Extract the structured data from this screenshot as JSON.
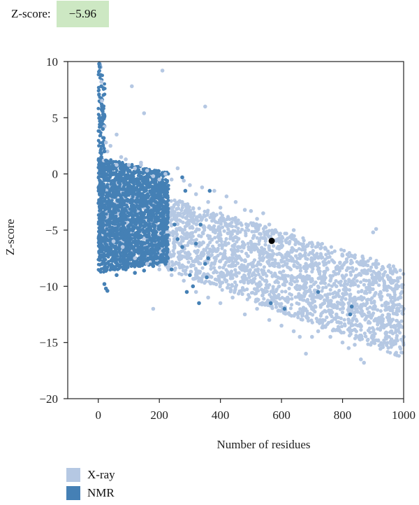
{
  "header": {
    "label": "Z-score:",
    "value": "−5.96"
  },
  "colors": {
    "xray": "#b5c8e3",
    "nmr": "#4580b5",
    "highlight": "#000000",
    "badge": "#cde8c3"
  },
  "chart_data": {
    "type": "scatter",
    "xlabel": "Number of residues",
    "ylabel": "Z-score",
    "xlim": [
      -100,
      1000
    ],
    "ylim": [
      -20,
      10
    ],
    "xticks": [
      0,
      200,
      400,
      600,
      800,
      1000
    ],
    "yticks": [
      10,
      5,
      0,
      -5,
      -10,
      -15,
      -20
    ],
    "ytick_labels": [
      "10",
      "5",
      "0",
      "−5",
      "−10",
      "−15",
      "−20"
    ],
    "grid": false,
    "legend_position": "bottom-left",
    "series": [
      {
        "name": "X-ray",
        "color": "#b5c8e3",
        "points": [
          [
            5,
            9.8
          ],
          [
            8,
            9.5
          ],
          [
            10,
            8.2
          ],
          [
            12,
            6.5
          ],
          [
            15,
            5.5
          ],
          [
            20,
            4.2
          ],
          [
            25,
            2.8
          ],
          [
            30,
            2.0
          ],
          [
            18,
            1.2
          ],
          [
            40,
            2.5
          ],
          [
            60,
            3.5
          ],
          [
            60,
            0.8
          ],
          [
            75,
            1.5
          ],
          [
            90,
            1.3
          ],
          [
            100,
            0.8
          ],
          [
            110,
            7.8
          ],
          [
            120,
            0.5
          ],
          [
            140,
            0.8
          ],
          [
            140,
            1.0
          ],
          [
            160,
            0.3
          ],
          [
            150,
            5.4
          ],
          [
            210,
            9.2
          ],
          [
            180,
            -0.2
          ],
          [
            200,
            -0.5
          ],
          [
            220,
            0.0
          ],
          [
            240,
            -0.5
          ],
          [
            260,
            0.5
          ],
          [
            280,
            -0.6
          ],
          [
            300,
            -1.0
          ],
          [
            320,
            -1.8
          ],
          [
            340,
            -1.2
          ],
          [
            350,
            6.0
          ],
          [
            360,
            -2.5
          ],
          [
            380,
            -1.5
          ],
          [
            400,
            -3.0
          ],
          [
            420,
            -2.0
          ],
          [
            450,
            -2.5
          ],
          [
            480,
            -3.2
          ],
          [
            500,
            -3.3
          ],
          [
            520,
            -4.0
          ],
          [
            540,
            -3.5
          ],
          [
            560,
            -4.5
          ],
          [
            580,
            -5.0
          ],
          [
            600,
            -6.5
          ],
          [
            620,
            -7.0
          ],
          [
            640,
            -5.0
          ],
          [
            660,
            -7.5
          ],
          [
            680,
            -8.0
          ],
          [
            700,
            -7.8
          ],
          [
            720,
            -8.5
          ],
          [
            740,
            -9.0
          ],
          [
            760,
            -9.5
          ],
          [
            780,
            -10.0
          ],
          [
            800,
            -11.0
          ],
          [
            820,
            -11.5
          ],
          [
            840,
            -11.0
          ],
          [
            860,
            -12.0
          ],
          [
            880,
            -11.5
          ],
          [
            900,
            -5.2
          ],
          [
            910,
            -4.9
          ],
          [
            920,
            -9.0
          ],
          [
            940,
            -10.0
          ],
          [
            960,
            -11.0
          ],
          [
            980,
            -9.5
          ],
          [
            995,
            -10.5
          ],
          [
            1000,
            -12.0
          ],
          [
            50,
            -6.0
          ],
          [
            80,
            -6.5
          ],
          [
            120,
            -7.5
          ],
          [
            160,
            -8.0
          ],
          [
            200,
            -8.5
          ],
          [
            180,
            -12.0
          ],
          [
            240,
            -9.0
          ],
          [
            280,
            -9.5
          ],
          [
            320,
            -10.5
          ],
          [
            360,
            -11.0
          ],
          [
            400,
            -11.5
          ],
          [
            440,
            -11.0
          ],
          [
            480,
            -12.5
          ],
          [
            520,
            -12.0
          ],
          [
            560,
            -13.0
          ],
          [
            600,
            -13.5
          ],
          [
            640,
            -14.0
          ],
          [
            660,
            -14.5
          ],
          [
            680,
            -16.0
          ],
          [
            700,
            -14.5
          ],
          [
            720,
            -14.0
          ],
          [
            760,
            -14.5
          ],
          [
            800,
            -15.0
          ],
          [
            820,
            -15.5
          ],
          [
            840,
            -15.2
          ],
          [
            860,
            -16.5
          ],
          [
            870,
            -16.8
          ],
          [
            900,
            -15.0
          ],
          [
            920,
            -13.0
          ],
          [
            940,
            -13.5
          ],
          [
            960,
            -14.0
          ],
          [
            980,
            -13.5
          ],
          [
            1000,
            -14.5
          ],
          [
            440,
            -4.0
          ],
          [
            500,
            -8.0
          ],
          [
            540,
            -10.5
          ],
          [
            580,
            -9.0
          ],
          [
            620,
            -11.0
          ],
          [
            660,
            -10.0
          ],
          [
            700,
            -12.0
          ],
          [
            740,
            -11.5
          ],
          [
            780,
            -12.5
          ],
          [
            820,
            -13.0
          ],
          [
            860,
            -13.5
          ],
          [
            900,
            -12.0
          ],
          [
            940,
            -11.5
          ],
          [
            300,
            -6.0
          ],
          [
            340,
            -7.0
          ],
          [
            380,
            -8.0
          ],
          [
            420,
            -9.5
          ],
          [
            460,
            -6.5
          ],
          [
            250,
            -4.0
          ],
          [
            270,
            -2.5
          ],
          [
            310,
            -3.5
          ],
          [
            330,
            -5.5
          ],
          [
            390,
            -5.0
          ],
          [
            430,
            -7.5
          ],
          [
            470,
            -8.5
          ],
          [
            510,
            -5.5
          ],
          [
            550,
            -7.0
          ],
          [
            590,
            -8.0
          ],
          [
            630,
            -8.5
          ],
          [
            670,
            -9.5
          ],
          [
            710,
            -10.5
          ],
          [
            750,
            -11.0
          ],
          [
            790,
            -11.5
          ],
          [
            830,
            -12.0
          ],
          [
            870,
            -12.5
          ],
          [
            910,
            -13.0
          ],
          [
            950,
            -12.5
          ],
          [
            990,
            -11.0
          ]
        ]
      },
      {
        "name": "NMR",
        "color": "#4580b5",
        "points": [
          [
            3,
            9.8
          ],
          [
            5,
            9.5
          ],
          [
            8,
            8.8
          ],
          [
            10,
            7.8
          ],
          [
            12,
            6.0
          ],
          [
            14,
            5.6
          ],
          [
            16,
            5.3
          ],
          [
            15,
            4.0
          ],
          [
            18,
            3.2
          ],
          [
            20,
            2.0
          ],
          [
            10,
            1.5
          ],
          [
            25,
            1.2
          ],
          [
            30,
            0.5
          ],
          [
            40,
            0.2
          ],
          [
            50,
            0.0
          ],
          [
            60,
            -0.2
          ],
          [
            80,
            0.2
          ],
          [
            100,
            -0.3
          ],
          [
            120,
            -0.5
          ],
          [
            140,
            -0.4
          ],
          [
            160,
            -1.0
          ],
          [
            180,
            -1.5
          ],
          [
            200,
            -1.8
          ],
          [
            220,
            -2.0
          ],
          [
            20,
            -9.8
          ],
          [
            25,
            -10.2
          ],
          [
            30,
            -10.4
          ],
          [
            60,
            -9.0
          ],
          [
            90,
            -8.5
          ],
          [
            120,
            -8.8
          ],
          [
            150,
            -8.6
          ],
          [
            180,
            -8.2
          ],
          [
            200,
            -7.5
          ],
          [
            220,
            -8.0
          ],
          [
            240,
            -8.5
          ],
          [
            40,
            -5.0
          ],
          [
            70,
            -4.0
          ],
          [
            100,
            -5.5
          ],
          [
            130,
            -6.0
          ],
          [
            160,
            -5.0
          ],
          [
            190,
            -6.5
          ],
          [
            210,
            -4.5
          ],
          [
            50,
            -7.0
          ],
          [
            90,
            -6.8
          ],
          [
            140,
            -3.5
          ],
          [
            170,
            -2.5
          ],
          [
            250,
            -4.5
          ],
          [
            260,
            -5.8
          ],
          [
            275,
            -6.5
          ],
          [
            285,
            -1.5
          ],
          [
            275,
            -0.3
          ],
          [
            290,
            -10.5
          ],
          [
            300,
            -9.0
          ],
          [
            310,
            -10.0
          ],
          [
            330,
            -11.5
          ],
          [
            350,
            -8.0
          ],
          [
            360,
            -7.5
          ],
          [
            355,
            -9.2
          ],
          [
            365,
            -1.5
          ],
          [
            335,
            -4.5
          ],
          [
            320,
            -6.2
          ],
          [
            565,
            -11.5
          ],
          [
            610,
            -12.0
          ],
          [
            720,
            -10.5
          ],
          [
            825,
            -12.5
          ],
          [
            830,
            -11.8
          ],
          [
            5,
            -3.0
          ],
          [
            8,
            -6.0
          ],
          [
            12,
            -8.0
          ],
          [
            35,
            -2.5
          ],
          [
            65,
            -1.8
          ],
          [
            110,
            -2.5
          ],
          [
            150,
            -7.5
          ],
          [
            195,
            -3.0
          ],
          [
            225,
            -6.0
          ]
        ]
      }
    ],
    "highlight": {
      "x": 568,
      "y": -5.96
    }
  },
  "legend": [
    {
      "label": "X-ray",
      "color": "#b5c8e3"
    },
    {
      "label": "NMR",
      "color": "#4580b5"
    }
  ]
}
